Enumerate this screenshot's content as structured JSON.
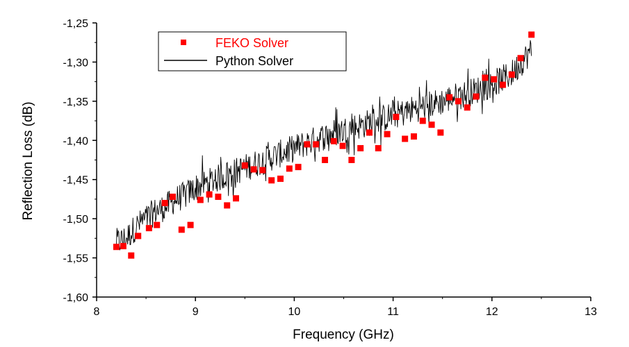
{
  "chart_data": {
    "type": "line",
    "xlabel": "Frequency (GHz)",
    "ylabel": "Reflection Loss (dB)",
    "xlim": [
      8,
      13
    ],
    "ylim": [
      -1.6,
      -1.25
    ],
    "x_ticks": [
      8,
      9,
      10,
      11,
      12,
      13
    ],
    "x_tick_labels": [
      "8",
      "9",
      "10",
      "11",
      "12",
      "13"
    ],
    "y_ticks": [
      -1.6,
      -1.55,
      -1.5,
      -1.45,
      -1.4,
      -1.35,
      -1.3,
      -1.25
    ],
    "y_tick_labels": [
      "-1,60",
      "-1,55",
      "-1,50",
      "-1,45",
      "-1,40",
      "-1,35",
      "-1,30",
      "-1,25"
    ],
    "grid": false,
    "legend_position": "top-left",
    "series": [
      {
        "name": "FEKO Solver",
        "style": "markers",
        "color": "#ff0000",
        "x": [
          8.2,
          8.27,
          8.35,
          8.42,
          8.53,
          8.61,
          8.69,
          8.77,
          8.86,
          8.95,
          9.05,
          9.14,
          9.23,
          9.32,
          9.41,
          9.5,
          9.59,
          9.68,
          9.77,
          9.86,
          9.95,
          10.04,
          10.13,
          10.22,
          10.31,
          10.4,
          10.49,
          10.58,
          10.67,
          10.76,
          10.85,
          10.94,
          11.03,
          11.12,
          11.21,
          11.3,
          11.39,
          11.48,
          11.57,
          11.66,
          11.75,
          11.84,
          11.93,
          12.02,
          12.11,
          12.2,
          12.29,
          12.4
        ],
        "y": [
          -1.536,
          -1.535,
          -1.547,
          -1.522,
          -1.512,
          -1.508,
          -1.48,
          -1.472,
          -1.514,
          -1.508,
          -1.476,
          -1.469,
          -1.472,
          -1.483,
          -1.474,
          -1.432,
          -1.437,
          -1.438,
          -1.451,
          -1.449,
          -1.436,
          -1.434,
          -1.405,
          -1.405,
          -1.425,
          -1.401,
          -1.407,
          -1.425,
          -1.41,
          -1.39,
          -1.41,
          -1.392,
          -1.37,
          -1.398,
          -1.395,
          -1.375,
          -1.38,
          -1.39,
          -1.345,
          -1.35,
          -1.358,
          -1.344,
          -1.32,
          -1.322,
          -1.329,
          -1.316,
          -1.295,
          -1.265
        ]
      },
      {
        "name": "Python Solver",
        "style": "line",
        "color": "#000000",
        "x": [
          8.2,
          8.3,
          8.4,
          8.5,
          8.6,
          8.7,
          8.8,
          8.9,
          9.0,
          9.1,
          9.2,
          9.3,
          9.4,
          9.5,
          9.6,
          9.7,
          9.8,
          9.9,
          10.0,
          10.1,
          10.2,
          10.3,
          10.4,
          10.5,
          10.6,
          10.7,
          10.8,
          10.9,
          11.0,
          11.1,
          11.2,
          11.3,
          11.4,
          11.5,
          11.6,
          11.7,
          11.8,
          11.9,
          12.0,
          12.1,
          12.2,
          12.3,
          12.4
        ],
        "y": [
          -1.53,
          -1.525,
          -1.51,
          -1.5,
          -1.49,
          -1.485,
          -1.475,
          -1.47,
          -1.46,
          -1.455,
          -1.45,
          -1.445,
          -1.44,
          -1.435,
          -1.43,
          -1.425,
          -1.42,
          -1.415,
          -1.41,
          -1.405,
          -1.4,
          -1.395,
          -1.39,
          -1.387,
          -1.383,
          -1.38,
          -1.375,
          -1.372,
          -1.368,
          -1.365,
          -1.36,
          -1.357,
          -1.353,
          -1.35,
          -1.345,
          -1.342,
          -1.338,
          -1.333,
          -1.328,
          -1.322,
          -1.315,
          -1.3,
          -1.285
        ]
      }
    ]
  }
}
